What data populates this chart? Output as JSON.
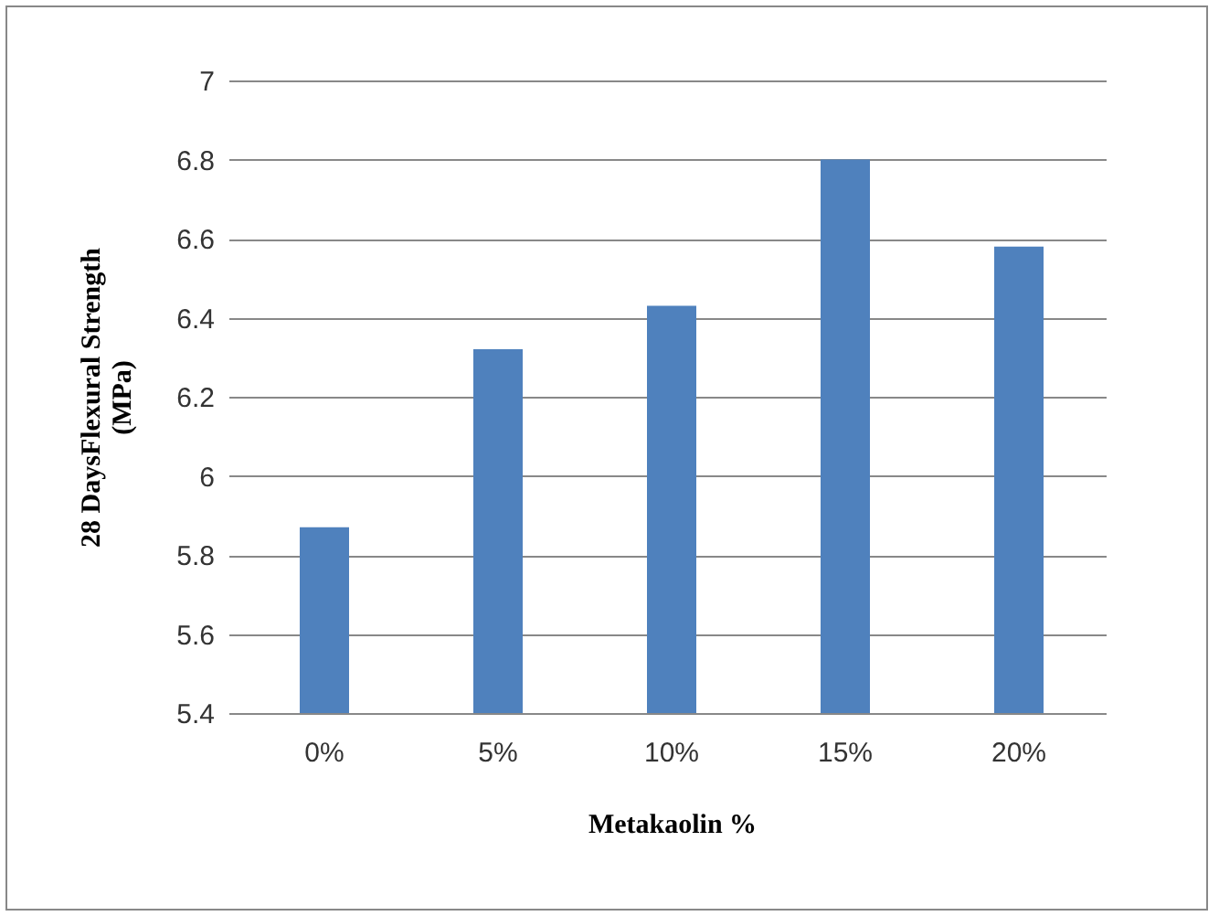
{
  "chart_data": {
    "type": "bar",
    "xlabel": "Metakaolin %",
    "ylabel": "28 DaysFlexural Strength\n(MPa)",
    "categories": [
      "0%",
      "5%",
      "10%",
      "15%",
      "20%"
    ],
    "values": [
      5.87,
      6.32,
      6.43,
      6.8,
      6.58
    ],
    "color": "#4f81bd",
    "ylim": [
      5.4,
      7
    ],
    "yticks": [
      5.4,
      5.6,
      5.8,
      6,
      6.2,
      6.4,
      6.6,
      6.8,
      7
    ],
    "grid": "y"
  }
}
